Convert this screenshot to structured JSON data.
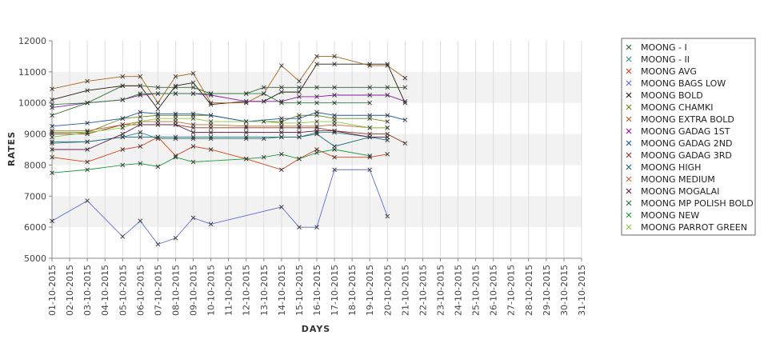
{
  "chart_data": {
    "type": "line",
    "xlabel": "DAYS",
    "ylabel": "RATES",
    "ylim": [
      5000,
      12000
    ],
    "yticks": [
      5000,
      6000,
      7000,
      8000,
      9000,
      10000,
      11000,
      12000
    ],
    "grid": true,
    "legend_position": "right",
    "x": [
      "01-10-2015",
      "02-10-2015",
      "03-10-2015",
      "04-10-2015",
      "05-10-2015",
      "06-10-2015",
      "07-10-2015",
      "08-10-2015",
      "09-10-2015",
      "10-10-2015",
      "11-10-2015",
      "12-10-2015",
      "13-10-2015",
      "14-10-2015",
      "15-10-2015",
      "16-10-2015",
      "17-10-2015",
      "18-10-2015",
      "19-10-2015",
      "20-10-2015",
      "21-10-2015",
      "22-10-2015",
      "23-10-2015",
      "24-10-2015",
      "25-10-2015",
      "26-10-2015",
      "27-10-2015",
      "28-10-2015",
      "29-10-2015",
      "30-10-2015",
      "31-10-2015"
    ],
    "series": [
      {
        "name": "MOONG - I",
        "color": "#2e6b2e",
        "points": [
          [
            "01-10-2015",
            9600
          ],
          [
            "03-10-2015",
            10000
          ],
          [
            "05-10-2015",
            10550
          ],
          [
            "06-10-2015",
            10550
          ],
          [
            "07-10-2015",
            10500
          ],
          [
            "08-10-2015",
            10500
          ],
          [
            "09-10-2015",
            10500
          ],
          [
            "10-10-2015",
            10300
          ],
          [
            "12-10-2015",
            10300
          ],
          [
            "13-10-2015",
            10500
          ],
          [
            "14-10-2015",
            10500
          ],
          [
            "15-10-2015",
            10500
          ],
          [
            "16-10-2015",
            10500
          ],
          [
            "17-10-2015",
            10500
          ],
          [
            "19-10-2015",
            10500
          ],
          [
            "20-10-2015",
            10500
          ],
          [
            "21-10-2015",
            10500
          ]
        ]
      },
      {
        "name": "MOONG - II",
        "color": "#3a8a8a",
        "points": [
          [
            "01-10-2015",
            8700
          ],
          [
            "03-10-2015",
            8750
          ],
          [
            "05-10-2015",
            8900
          ],
          [
            "06-10-2015",
            9050
          ],
          [
            "07-10-2015",
            8850
          ],
          [
            "08-10-2015",
            8850
          ],
          [
            "09-10-2015",
            8850
          ],
          [
            "10-10-2015",
            8850
          ],
          [
            "12-10-2015",
            8850
          ],
          [
            "13-10-2015",
            8850
          ],
          [
            "14-10-2015",
            8900
          ],
          [
            "15-10-2015",
            8900
          ],
          [
            "16-10-2015",
            9050
          ],
          [
            "17-10-2015",
            9050
          ],
          [
            "19-10-2015",
            8900
          ],
          [
            "20-10-2015",
            8900
          ]
        ]
      },
      {
        "name": "MOONG AVG",
        "color": "#d0441a",
        "points": [
          [
            "01-10-2015",
            8250
          ],
          [
            "03-10-2015",
            8100
          ],
          [
            "05-10-2015",
            8500
          ],
          [
            "06-10-2015",
            8600
          ],
          [
            "07-10-2015",
            8900
          ],
          [
            "08-10-2015",
            8300
          ],
          [
            "09-10-2015",
            8600
          ],
          [
            "10-10-2015",
            8500
          ],
          [
            "12-10-2015",
            8200
          ],
          [
            "14-10-2015",
            7850
          ],
          [
            "15-10-2015",
            8200
          ],
          [
            "16-10-2015",
            8500
          ],
          [
            "17-10-2015",
            8250
          ],
          [
            "19-10-2015",
            8250
          ],
          [
            "20-10-2015",
            8350
          ]
        ]
      },
      {
        "name": "MOONG BAGS LOW",
        "color": "#5a6fd0",
        "points": [
          [
            "01-10-2015",
            6200
          ],
          [
            "03-10-2015",
            6850
          ],
          [
            "05-10-2015",
            5700
          ],
          [
            "06-10-2015",
            6200
          ],
          [
            "07-10-2015",
            5450
          ],
          [
            "08-10-2015",
            5650
          ],
          [
            "09-10-2015",
            6300
          ],
          [
            "10-10-2015",
            6100
          ],
          [
            "14-10-2015",
            6650
          ],
          [
            "15-10-2015",
            6000
          ],
          [
            "16-10-2015",
            6000
          ],
          [
            "17-10-2015",
            7850
          ],
          [
            "19-10-2015",
            7850
          ],
          [
            "20-10-2015",
            6350
          ]
        ]
      },
      {
        "name": "MOONG BOLD",
        "color": "#2b1a0e",
        "points": [
          [
            "01-10-2015",
            10100
          ],
          [
            "03-10-2015",
            10400
          ],
          [
            "05-10-2015",
            10550
          ],
          [
            "06-10-2015",
            10550
          ],
          [
            "07-10-2015",
            9800
          ],
          [
            "08-10-2015",
            10550
          ],
          [
            "09-10-2015",
            10650
          ],
          [
            "10-10-2015",
            9950
          ],
          [
            "12-10-2015",
            10050
          ],
          [
            "13-10-2015",
            10050
          ],
          [
            "14-10-2015",
            10350
          ],
          [
            "15-10-2015",
            10350
          ],
          [
            "16-10-2015",
            11250
          ],
          [
            "17-10-2015",
            11250
          ],
          [
            "19-10-2015",
            11250
          ],
          [
            "20-10-2015",
            11250
          ],
          [
            "21-10-2015",
            10000
          ]
        ]
      },
      {
        "name": "MOONG CHAMKI",
        "color": "#6b8a1a",
        "points": [
          [
            "01-10-2015",
            9050
          ],
          [
            "03-10-2015",
            9050
          ],
          [
            "05-10-2015",
            9500
          ],
          [
            "06-10-2015",
            9550
          ],
          [
            "07-10-2015",
            9600
          ],
          [
            "08-10-2015",
            9600
          ],
          [
            "09-10-2015",
            9600
          ],
          [
            "10-10-2015",
            9600
          ],
          [
            "12-10-2015",
            9400
          ],
          [
            "14-10-2015",
            9400
          ],
          [
            "15-10-2015",
            9600
          ],
          [
            "16-10-2015",
            9600
          ],
          [
            "17-10-2015",
            9500
          ],
          [
            "19-10-2015",
            9500
          ],
          [
            "20-10-2015",
            9400
          ]
        ]
      },
      {
        "name": "MOONG EXTRA BOLD",
        "color": "#a8641a",
        "points": [
          [
            "01-10-2015",
            10450
          ],
          [
            "03-10-2015",
            10700
          ],
          [
            "05-10-2015",
            10850
          ],
          [
            "06-10-2015",
            10850
          ],
          [
            "07-10-2015",
            10000
          ],
          [
            "08-10-2015",
            10850
          ],
          [
            "09-10-2015",
            10950
          ],
          [
            "10-10-2015",
            10000
          ],
          [
            "12-10-2015",
            10000
          ],
          [
            "13-10-2015",
            10300
          ],
          [
            "14-10-2015",
            11200
          ],
          [
            "15-10-2015",
            10700
          ],
          [
            "16-10-2015",
            11500
          ],
          [
            "17-10-2015",
            11500
          ],
          [
            "19-10-2015",
            11200
          ],
          [
            "20-10-2015",
            11200
          ],
          [
            "21-10-2015",
            10800
          ]
        ]
      },
      {
        "name": "MOONG GADAG 1ST",
        "color": "#8a1aa0",
        "points": [
          [
            "01-10-2015",
            9850
          ],
          [
            "03-10-2015",
            10000
          ],
          [
            "05-10-2015",
            10100
          ],
          [
            "06-10-2015",
            10250
          ],
          [
            "07-10-2015",
            10300
          ],
          [
            "08-10-2015",
            10300
          ],
          [
            "09-10-2015",
            10300
          ],
          [
            "10-10-2015",
            10250
          ],
          [
            "12-10-2015",
            10050
          ],
          [
            "13-10-2015",
            10050
          ],
          [
            "14-10-2015",
            10050
          ],
          [
            "15-10-2015",
            10200
          ],
          [
            "16-10-2015",
            10200
          ],
          [
            "17-10-2015",
            10250
          ],
          [
            "19-10-2015",
            10250
          ],
          [
            "20-10-2015",
            10250
          ],
          [
            "21-10-2015",
            10050
          ]
        ]
      },
      {
        "name": "MOONG GADAG 2ND",
        "color": "#1a5aa0",
        "points": [
          [
            "01-10-2015",
            9250
          ],
          [
            "03-10-2015",
            9350
          ],
          [
            "05-10-2015",
            9500
          ],
          [
            "06-10-2015",
            9700
          ],
          [
            "07-10-2015",
            9650
          ],
          [
            "08-10-2015",
            9650
          ],
          [
            "09-10-2015",
            9650
          ],
          [
            "10-10-2015",
            9600
          ],
          [
            "12-10-2015",
            9400
          ],
          [
            "14-10-2015",
            9500
          ],
          [
            "15-10-2015",
            9500
          ],
          [
            "16-10-2015",
            9700
          ],
          [
            "17-10-2015",
            9600
          ],
          [
            "19-10-2015",
            9600
          ],
          [
            "20-10-2015",
            9600
          ],
          [
            "21-10-2015",
            9450
          ]
        ]
      },
      {
        "name": "MOONG GADAG 3RD",
        "color": "#8a3a1a",
        "points": [
          [
            "01-10-2015",
            9000
          ],
          [
            "03-10-2015",
            9000
          ],
          [
            "05-10-2015",
            9300
          ],
          [
            "06-10-2015",
            9300
          ],
          [
            "07-10-2015",
            9300
          ],
          [
            "08-10-2015",
            9300
          ],
          [
            "09-10-2015",
            9200
          ],
          [
            "10-10-2015",
            9200
          ],
          [
            "12-10-2015",
            9200
          ],
          [
            "14-10-2015",
            9200
          ],
          [
            "15-10-2015",
            9200
          ],
          [
            "16-10-2015",
            9200
          ],
          [
            "17-10-2015",
            9100
          ],
          [
            "19-10-2015",
            9000
          ],
          [
            "20-10-2015",
            9000
          ],
          [
            "21-10-2015",
            8700
          ]
        ]
      },
      {
        "name": "MOONG HIGH",
        "color": "#1a6a7a",
        "points": [
          [
            "01-10-2015",
            8750
          ],
          [
            "03-10-2015",
            8750
          ],
          [
            "05-10-2015",
            8900
          ],
          [
            "06-10-2015",
            8900
          ],
          [
            "07-10-2015",
            8900
          ],
          [
            "08-10-2015",
            8900
          ],
          [
            "09-10-2015",
            8900
          ],
          [
            "10-10-2015",
            8900
          ],
          [
            "12-10-2015",
            8900
          ],
          [
            "14-10-2015",
            8900
          ],
          [
            "15-10-2015",
            8900
          ],
          [
            "16-10-2015",
            9000
          ],
          [
            "17-10-2015",
            8600
          ],
          [
            "19-10-2015",
            8900
          ],
          [
            "20-10-2015",
            8800
          ]
        ]
      },
      {
        "name": "MOONG MEDIUM",
        "color": "#c06a3a",
        "points": [
          [
            "01-10-2015",
            9100
          ],
          [
            "03-10-2015",
            9100
          ],
          [
            "05-10-2015",
            9300
          ],
          [
            "06-10-2015",
            9400
          ],
          [
            "07-10-2015",
            9400
          ],
          [
            "08-10-2015",
            9400
          ],
          [
            "09-10-2015",
            9300
          ],
          [
            "10-10-2015",
            9300
          ],
          [
            "12-10-2015",
            9250
          ],
          [
            "14-10-2015",
            9250
          ],
          [
            "15-10-2015",
            9250
          ],
          [
            "16-10-2015",
            9250
          ],
          [
            "17-10-2015",
            9300
          ],
          [
            "19-10-2015",
            9200
          ],
          [
            "20-10-2015",
            9200
          ]
        ]
      },
      {
        "name": "MOONG MOGALAI",
        "color": "#6a1a4a",
        "points": [
          [
            "01-10-2015",
            8500
          ],
          [
            "03-10-2015",
            8500
          ],
          [
            "05-10-2015",
            9000
          ],
          [
            "06-10-2015",
            9300
          ],
          [
            "07-10-2015",
            9300
          ],
          [
            "08-10-2015",
            9300
          ],
          [
            "09-10-2015",
            9050
          ],
          [
            "10-10-2015",
            9050
          ],
          [
            "12-10-2015",
            9050
          ],
          [
            "14-10-2015",
            9050
          ],
          [
            "15-10-2015",
            9050
          ],
          [
            "16-10-2015",
            9100
          ],
          [
            "17-10-2015",
            9100
          ],
          [
            "19-10-2015",
            8900
          ],
          [
            "20-10-2015",
            8900
          ]
        ]
      },
      {
        "name": "MOONG MP POLISH BOLD",
        "color": "#2a7a3a",
        "points": [
          [
            "01-10-2015",
            9950
          ],
          [
            "03-10-2015",
            10000
          ],
          [
            "05-10-2015",
            10100
          ],
          [
            "06-10-2015",
            10300
          ],
          [
            "07-10-2015",
            10300
          ],
          [
            "08-10-2015",
            10300
          ],
          [
            "09-10-2015",
            10300
          ],
          [
            "10-10-2015",
            10300
          ],
          [
            "12-10-2015",
            10300
          ],
          [
            "13-10-2015",
            10300
          ],
          [
            "14-10-2015",
            10000
          ],
          [
            "15-10-2015",
            10000
          ],
          [
            "16-10-2015",
            10000
          ],
          [
            "17-10-2015",
            10000
          ],
          [
            "19-10-2015",
            10000
          ]
        ]
      },
      {
        "name": "MOONG NEW",
        "color": "#1a9a3a",
        "points": [
          [
            "01-10-2015",
            7750
          ],
          [
            "03-10-2015",
            7850
          ],
          [
            "05-10-2015",
            8000
          ],
          [
            "06-10-2015",
            8050
          ],
          [
            "07-10-2015",
            7950
          ],
          [
            "08-10-2015",
            8250
          ],
          [
            "09-10-2015",
            8100
          ],
          [
            "12-10-2015",
            8200
          ],
          [
            "13-10-2015",
            8250
          ],
          [
            "14-10-2015",
            8350
          ],
          [
            "15-10-2015",
            8200
          ],
          [
            "16-10-2015",
            8400
          ],
          [
            "17-10-2015",
            8500
          ],
          [
            "19-10-2015",
            8300
          ]
        ]
      },
      {
        "name": "MOONG PARROT GREEN",
        "color": "#8ac83a",
        "points": [
          [
            "01-10-2015",
            8900
          ],
          [
            "03-10-2015",
            9050
          ],
          [
            "05-10-2015",
            9200
          ],
          [
            "06-10-2015",
            9400
          ],
          [
            "07-10-2015",
            9500
          ],
          [
            "08-10-2015",
            9500
          ],
          [
            "09-10-2015",
            9500
          ],
          [
            "10-10-2015",
            9400
          ],
          [
            "12-10-2015",
            9400
          ],
          [
            "13-10-2015",
            9400
          ],
          [
            "14-10-2015",
            9350
          ],
          [
            "15-10-2015",
            9350
          ],
          [
            "16-10-2015",
            9400
          ],
          [
            "17-10-2015",
            9400
          ],
          [
            "19-10-2015",
            9200
          ],
          [
            "20-10-2015",
            9200
          ]
        ]
      }
    ]
  }
}
